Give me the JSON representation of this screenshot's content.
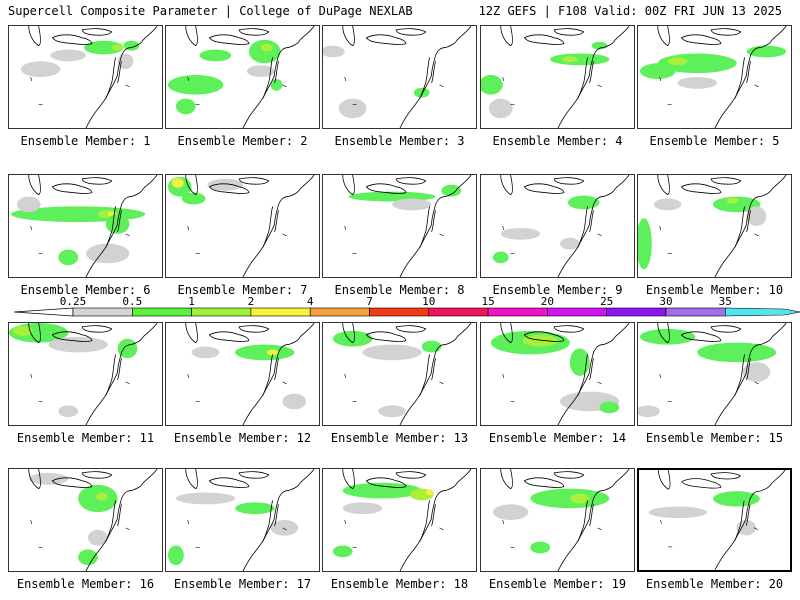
{
  "header": {
    "title": "Supercell Composite Parameter | College of DuPage NEXLAB",
    "run_info": "12Z GEFS | F108 Valid: 00Z FRI JUN 13 2025"
  },
  "colorbar": {
    "levels": [
      "0.25",
      "0.5",
      "1",
      "2",
      "4",
      "7",
      "10",
      "15",
      "20",
      "25",
      "30",
      "35"
    ],
    "colors": [
      "#d4d4d4",
      "#5af03c",
      "#a0f03c",
      "#f5f53c",
      "#f5a03c",
      "#f03c14",
      "#f0145a",
      "#f014c8",
      "#d214f0",
      "#8c14f0",
      "#a06ee6",
      "#50e6f0"
    ]
  },
  "fill_colors": {
    "gray": "#d2d2d2",
    "green": "#5ef05a",
    "lime": "#a8f03c",
    "yellow": "#f5f03c"
  },
  "panels": [
    {
      "label": "Ensemble Member: 1",
      "selected": false
    },
    {
      "label": "Ensemble Member: 2",
      "selected": false
    },
    {
      "label": "Ensemble Member: 3",
      "selected": false
    },
    {
      "label": "Ensemble Member: 4",
      "selected": false
    },
    {
      "label": "Ensemble Member: 5",
      "selected": false
    },
    {
      "label": "Ensemble Member: 6",
      "selected": false
    },
    {
      "label": "Ensemble Member: 7",
      "selected": false
    },
    {
      "label": "Ensemble Member: 8",
      "selected": false
    },
    {
      "label": "Ensemble Member: 9",
      "selected": false
    },
    {
      "label": "Ensemble Member: 10",
      "selected": false
    },
    {
      "label": "Ensemble Member: 11",
      "selected": false
    },
    {
      "label": "Ensemble Member: 12",
      "selected": false
    },
    {
      "label": "Ensemble Member: 13",
      "selected": false
    },
    {
      "label": "Ensemble Member: 14",
      "selected": false
    },
    {
      "label": "Ensemble Member: 15",
      "selected": false
    },
    {
      "label": "Ensemble Member: 16",
      "selected": false
    },
    {
      "label": "Ensemble Member: 17",
      "selected": false
    },
    {
      "label": "Ensemble Member: 18",
      "selected": false
    },
    {
      "label": "Ensemble Member: 19",
      "selected": false
    },
    {
      "label": "Ensemble Member: 20",
      "selected": true
    }
  ]
}
